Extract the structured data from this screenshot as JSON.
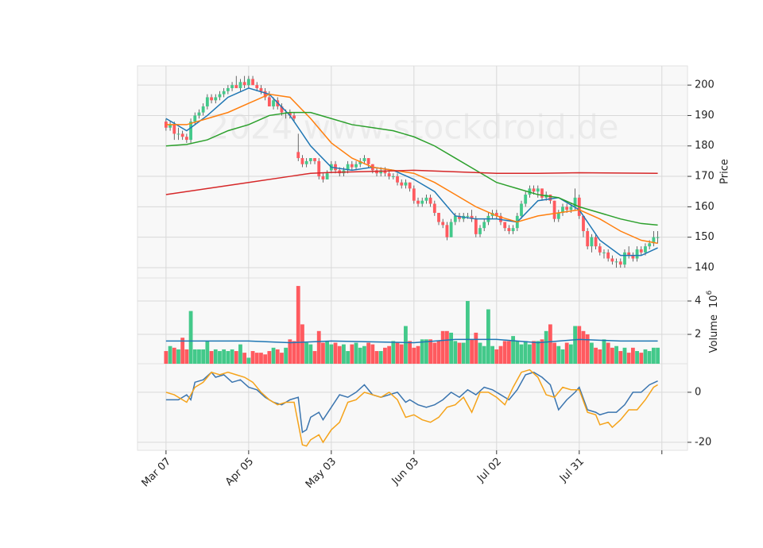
{
  "chart_data": {
    "type": "candlestick",
    "watermark": "2024 www.stockdroid.de",
    "grid": true,
    "up_color": "#43c98a",
    "down_color": "#ff5a5f",
    "x": [
      0,
      1,
      2,
      3,
      4,
      5,
      6,
      7,
      8,
      9,
      10,
      11,
      12,
      13,
      14,
      15,
      16,
      17,
      18,
      19,
      20,
      21,
      22,
      23,
      24,
      25,
      26,
      27,
      28,
      29,
      30,
      31,
      32,
      33,
      34,
      35,
      36,
      37,
      38,
      39,
      40,
      41,
      42,
      43,
      44,
      45,
      46,
      47,
      48,
      49,
      50,
      51,
      52,
      53,
      54,
      55,
      56,
      57,
      58,
      59,
      60,
      61,
      62,
      63,
      64,
      65,
      66,
      67,
      68,
      69,
      70,
      71,
      72,
      73,
      74,
      75,
      76,
      77,
      78,
      79,
      80,
      81,
      82,
      83,
      84,
      85,
      86,
      87,
      88,
      89,
      90,
      91,
      92,
      93,
      94,
      95,
      96,
      97,
      98,
      99,
      100,
      101,
      102,
      103,
      104,
      105,
      106,
      107,
      108,
      109,
      110,
      111,
      112,
      113,
      114,
      115,
      116,
      117,
      118,
      119
    ],
    "xlim": [
      -6.9,
      126.2
    ],
    "xticks": [
      {
        "value": 0,
        "label": "Mar 07"
      },
      {
        "value": 20,
        "label": "Apr 05"
      },
      {
        "value": 40,
        "label": "May 03"
      },
      {
        "value": 60,
        "label": "Jun 03"
      },
      {
        "value": 80,
        "label": "Jul 02"
      },
      {
        "value": 100,
        "label": "Jul 31"
      },
      {
        "value": 120,
        "label": null
      }
    ],
    "ylabel": "Price",
    "ylim": [
      136.6,
      206.3
    ],
    "yticks": [
      140,
      150,
      160,
      170,
      180,
      190,
      200
    ],
    "ohlc": [
      [
        188,
        189,
        185,
        186
      ],
      [
        186,
        188,
        185,
        187
      ],
      [
        187,
        188,
        182,
        184
      ],
      [
        184,
        186,
        182,
        184
      ],
      [
        184,
        185,
        182,
        183
      ],
      [
        183,
        184,
        181,
        182
      ],
      [
        182,
        189,
        181,
        188
      ],
      [
        188,
        191,
        187,
        190
      ],
      [
        190,
        192,
        189,
        191
      ],
      [
        191,
        194,
        190,
        193
      ],
      [
        193,
        197,
        192,
        196
      ],
      [
        196,
        197,
        194,
        195
      ],
      [
        195,
        197,
        194,
        196
      ],
      [
        196,
        198,
        195,
        197
      ],
      [
        197,
        199,
        196,
        198
      ],
      [
        198,
        200,
        197,
        199
      ],
      [
        199,
        201,
        198,
        200
      ],
      [
        200,
        203,
        199,
        199
      ],
      [
        199,
        202,
        198,
        201
      ],
      [
        201,
        203,
        199,
        200
      ],
      [
        200,
        203,
        199,
        202
      ],
      [
        202,
        203,
        200,
        200
      ],
      [
        200,
        201,
        198,
        199
      ],
      [
        199,
        200,
        197,
        198
      ],
      [
        198,
        199,
        195,
        196
      ],
      [
        196,
        198,
        193,
        193
      ],
      [
        193,
        196,
        192,
        195
      ],
      [
        195,
        196,
        192,
        193
      ],
      [
        193,
        194,
        190,
        191
      ],
      [
        191,
        192,
        189,
        191
      ],
      [
        191,
        192,
        189,
        190
      ],
      [
        190,
        191,
        188,
        189
      ],
      [
        178,
        184,
        175,
        176
      ],
      [
        176,
        177,
        173,
        174
      ],
      [
        174,
        176,
        173,
        175
      ],
      [
        175,
        176,
        174,
        176
      ],
      [
        176,
        176,
        174,
        175
      ],
      [
        175,
        176,
        169,
        170
      ],
      [
        170,
        171,
        168,
        169
      ],
      [
        169,
        172,
        169,
        171
      ],
      [
        172,
        175,
        171,
        174
      ],
      [
        174,
        175,
        171,
        172
      ],
      [
        172,
        173,
        170,
        171
      ],
      [
        171,
        173,
        170,
        172
      ],
      [
        172,
        175,
        171,
        174
      ],
      [
        174,
        175,
        172,
        173
      ],
      [
        173,
        175,
        172,
        174
      ],
      [
        174,
        176,
        173,
        175
      ],
      [
        175,
        177,
        174,
        176
      ],
      [
        176,
        176,
        173,
        174
      ],
      [
        174,
        174,
        171,
        172
      ],
      [
        172,
        173,
        170,
        171
      ],
      [
        171,
        173,
        170,
        172
      ],
      [
        172,
        173,
        170,
        171
      ],
      [
        171,
        172,
        169,
        170
      ],
      [
        170,
        171,
        169,
        170
      ],
      [
        170,
        171,
        167,
        168
      ],
      [
        168,
        169,
        166,
        167
      ],
      [
        167,
        169,
        166,
        168
      ],
      [
        168,
        168,
        165,
        166
      ],
      [
        166,
        167,
        161,
        162
      ],
      [
        162,
        163,
        160,
        161
      ],
      [
        161,
        163,
        160,
        162
      ],
      [
        162,
        164,
        161,
        163
      ],
      [
        163,
        164,
        160,
        161
      ],
      [
        161,
        162,
        157,
        158
      ],
      [
        158,
        158,
        154,
        155
      ],
      [
        155,
        156,
        153,
        154
      ],
      [
        154,
        155,
        149,
        150
      ],
      [
        150,
        156,
        150,
        155
      ],
      [
        155,
        158,
        154,
        157
      ],
      [
        157,
        158,
        155,
        156
      ],
      [
        156,
        158,
        155,
        157
      ],
      [
        157,
        158,
        156,
        157
      ],
      [
        157,
        159,
        155,
        156
      ],
      [
        156,
        157,
        150,
        151
      ],
      [
        151,
        154,
        150,
        153
      ],
      [
        153,
        156,
        152,
        155
      ],
      [
        155,
        158,
        154,
        157
      ],
      [
        157,
        159,
        156,
        158
      ],
      [
        158,
        159,
        156,
        157
      ],
      [
        157,
        158,
        154,
        155
      ],
      [
        155,
        155,
        152,
        153
      ],
      [
        153,
        154,
        151,
        152
      ],
      [
        152,
        154,
        151,
        153
      ],
      [
        153,
        158,
        152,
        157
      ],
      [
        157,
        162,
        156,
        161
      ],
      [
        161,
        165,
        160,
        164
      ],
      [
        164,
        167,
        163,
        166
      ],
      [
        166,
        167,
        164,
        165
      ],
      [
        165,
        167,
        163,
        166
      ],
      [
        166,
        166,
        162,
        163
      ],
      [
        163,
        165,
        162,
        164
      ],
      [
        164,
        164,
        161,
        162
      ],
      [
        162,
        162,
        155,
        156
      ],
      [
        156,
        159,
        155,
        158
      ],
      [
        158,
        161,
        157,
        160
      ],
      [
        160,
        161,
        158,
        159
      ],
      [
        159,
        161,
        158,
        160
      ],
      [
        160,
        166,
        159,
        163
      ],
      [
        163,
        164,
        156,
        157
      ],
      [
        157,
        157,
        150,
        152
      ],
      [
        152,
        153,
        146,
        147
      ],
      [
        147,
        151,
        145,
        150
      ],
      [
        150,
        151,
        146,
        147
      ],
      [
        147,
        148,
        144,
        145
      ],
      [
        145,
        146,
        143,
        145
      ],
      [
        145,
        146,
        142,
        143
      ],
      [
        143,
        144,
        141,
        142
      ],
      [
        142,
        143,
        140,
        142
      ],
      [
        142,
        143,
        140,
        141
      ],
      [
        141,
        146,
        140,
        145
      ],
      [
        145,
        147,
        143,
        144
      ],
      [
        144,
        145,
        142,
        143
      ],
      [
        143,
        147,
        142,
        146
      ],
      [
        146,
        147,
        144,
        145
      ],
      [
        145,
        148,
        144,
        147
      ],
      [
        147,
        149,
        146,
        148
      ],
      [
        148,
        152,
        147,
        150
      ],
      [
        150,
        152,
        148,
        150
      ]
    ],
    "moving_averages": [
      {
        "color": "#1f77b4",
        "x": [
          0,
          5,
          10,
          15,
          20,
          25,
          30,
          35,
          40,
          45,
          50,
          55,
          60,
          65,
          70,
          75,
          80,
          85,
          90,
          95,
          100,
          105,
          110,
          115,
          119
        ],
        "values": [
          189,
          185,
          190,
          196,
          199,
          197,
          190,
          180,
          173,
          172,
          173,
          172,
          169,
          165,
          157,
          156,
          156,
          155,
          162,
          163,
          159,
          149,
          144,
          144,
          146.5
        ]
      },
      {
        "color": "#ff7f0e",
        "x": [
          0,
          5,
          10,
          15,
          20,
          25,
          30,
          35,
          40,
          45,
          50,
          55,
          60,
          65,
          70,
          75,
          80,
          85,
          90,
          95,
          100,
          105,
          110,
          115,
          119
        ],
        "values": [
          187,
          187,
          189,
          191,
          194,
          197,
          196,
          189,
          181,
          176,
          173,
          172,
          171,
          168,
          164,
          160,
          157,
          155,
          157,
          158,
          159,
          156,
          152,
          149,
          148
        ]
      },
      {
        "color": "#2ca02c",
        "x": [
          0,
          5,
          10,
          15,
          20,
          25,
          30,
          35,
          40,
          45,
          50,
          55,
          60,
          65,
          70,
          75,
          80,
          85,
          90,
          95,
          100,
          105,
          110,
          115,
          119
        ],
        "values": [
          180,
          180.5,
          182,
          185,
          187,
          190,
          191,
          191,
          189,
          187,
          186,
          185,
          183,
          180,
          176,
          172,
          168,
          166,
          164,
          163,
          160,
          158,
          156,
          154.5,
          154
        ]
      },
      {
        "color": "#d62728",
        "x": [
          0,
          10,
          20,
          30,
          35,
          40,
          60,
          80,
          90,
          100,
          119
        ],
        "values": [
          164,
          166,
          168,
          170,
          171,
          171.3,
          172,
          171,
          171,
          171.2,
          171
        ]
      }
    ],
    "volume": {
      "ylabel": "Volume",
      "multiplier_base": "10",
      "multiplier_exponent": "6",
      "ylim": [
        0.24,
        5.38
      ],
      "yticks": [
        2,
        4
      ],
      "values": [
        1.0,
        1.3,
        1.2,
        1.1,
        1.8,
        1.1,
        3.4,
        1.1,
        1.1,
        1.1,
        1.6,
        1.0,
        1.1,
        1.0,
        1.1,
        1.0,
        1.1,
        1.0,
        1.4,
        0.9,
        0.6,
        1.0,
        0.9,
        0.9,
        0.8,
        1.0,
        1.2,
        1.1,
        0.9,
        1.2,
        1.7,
        1.6,
        4.9,
        2.6,
        1.5,
        1.4,
        1.0,
        2.2,
        1.5,
        1.6,
        1.4,
        1.5,
        1.3,
        1.4,
        1.0,
        1.4,
        1.5,
        1.2,
        1.3,
        1.5,
        1.4,
        1.0,
        1.0,
        1.2,
        1.3,
        1.6,
        1.5,
        1.4,
        2.5,
        1.6,
        1.2,
        1.3,
        1.7,
        1.7,
        1.7,
        1.5,
        1.6,
        2.2,
        2.2,
        2.1,
        1.6,
        1.5,
        1.5,
        4.0,
        1.7,
        2.1,
        1.5,
        1.3,
        3.5,
        1.3,
        1.1,
        1.3,
        1.6,
        1.6,
        1.9,
        1.6,
        1.4,
        1.6,
        1.4,
        1.6,
        1.6,
        1.7,
        2.2,
        2.6,
        1.5,
        1.3,
        1.1,
        1.5,
        1.4,
        2.5,
        2.5,
        2.2,
        2.0,
        1.5,
        1.2,
        1.1,
        1.7,
        1.5,
        1.2,
        1.3,
        1.0,
        1.2,
        0.9,
        1.2,
        1.0,
        0.9,
        1.1,
        1.0,
        1.2,
        1.2
      ],
      "average": {
        "color": "#1f77b4",
        "x": [
          0,
          20,
          30,
          40,
          60,
          70,
          80,
          90,
          100,
          110,
          119
        ],
        "values": [
          1.6,
          1.6,
          1.5,
          1.6,
          1.5,
          1.7,
          1.7,
          1.5,
          1.7,
          1.6,
          1.6
        ]
      }
    },
    "oscillator": {
      "ylim": [
        -23.2,
        11.4
      ],
      "yticks": [
        -20,
        0
      ],
      "series": [
        {
          "color": "#3b75af",
          "x": [
            0,
            3,
            5,
            6,
            7,
            9,
            11,
            12,
            14,
            16,
            18,
            20,
            22,
            24,
            26,
            28,
            30,
            32,
            33,
            34,
            35,
            37,
            38,
            40,
            42,
            44,
            46,
            48,
            50,
            52,
            54,
            56,
            58,
            59,
            61,
            63,
            65,
            67,
            69,
            71,
            73,
            75,
            77,
            79,
            81,
            83,
            85,
            87,
            89,
            91,
            93,
            95,
            97,
            99,
            100,
            102,
            104,
            105,
            107,
            109,
            111,
            113,
            115,
            117,
            119
          ],
          "values": [
            -3,
            -3,
            -1,
            -3,
            4,
            5,
            8,
            6,
            7,
            4,
            5,
            2,
            1,
            -2,
            -4,
            -5,
            -3,
            -2,
            -16,
            -15,
            -10,
            -8,
            -11,
            -6,
            -1,
            -2,
            0,
            3,
            -1,
            -2,
            -1,
            0,
            -4,
            -3,
            -5,
            -6,
            -5,
            -3,
            0,
            -2,
            1,
            -1,
            2,
            1,
            -1,
            -3,
            1,
            7,
            8,
            6,
            3,
            -7,
            -3,
            0,
            2,
            -7,
            -8,
            -9,
            -8,
            -8,
            -5,
            0,
            0,
            3,
            4.5
          ]
        },
        {
          "color": "#f5a31a",
          "x": [
            0,
            2,
            5,
            6,
            7,
            9,
            11,
            13,
            15,
            17,
            19,
            21,
            23,
            25,
            27,
            29,
            31,
            33,
            34,
            35,
            37,
            38,
            40,
            42,
            44,
            46,
            48,
            50,
            52,
            54,
            56,
            58,
            60,
            62,
            64,
            66,
            68,
            70,
            72,
            74,
            76,
            78,
            80,
            82,
            84,
            86,
            88,
            90,
            92,
            94,
            96,
            98,
            100,
            102,
            104,
            105,
            107,
            108,
            110,
            112,
            114,
            116,
            118,
            119
          ],
          "values": [
            0,
            -1,
            -4,
            -1,
            2,
            4,
            8,
            7,
            8,
            7,
            6,
            4,
            0,
            -3,
            -5,
            -4,
            -4,
            -21,
            -21.5,
            -19,
            -17,
            -20,
            -15,
            -12,
            -4,
            -3,
            0,
            -1,
            -2,
            0,
            -3,
            -10,
            -9,
            -11,
            -12,
            -10,
            -6,
            -5,
            -2,
            -8,
            0,
            0,
            -2,
            -5,
            2,
            8,
            9,
            6,
            -1,
            -2,
            2,
            1,
            1,
            -8,
            -9,
            -13,
            -12,
            -14,
            -11,
            -7,
            -7,
            -3,
            2,
            3
          ]
        }
      ]
    }
  }
}
